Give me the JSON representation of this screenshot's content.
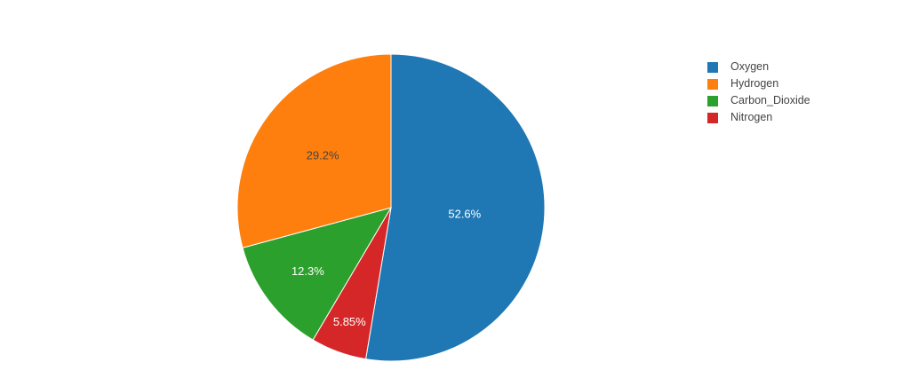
{
  "chart_data": {
    "type": "pie",
    "title": "",
    "legend_position": "right",
    "label_format": "percent_inside",
    "background_color": "#ffffff",
    "series": [
      {
        "name": "Oxygen",
        "value": 52.6,
        "display": "52.6%",
        "color": "#1f77b4",
        "text_color": "#ffffff",
        "label_radius_frac": 0.48
      },
      {
        "name": "Hydrogen",
        "value": 29.2,
        "display": "29.2%",
        "color": "#ff7f0e",
        "text_color": "#444444",
        "label_radius_frac": 0.56
      },
      {
        "name": "Carbon_Dioxide",
        "value": 12.3,
        "display": "12.3%",
        "color": "#2ca02c",
        "text_color": "#ffffff",
        "label_radius_frac": 0.68
      },
      {
        "name": "Nitrogen",
        "value": 5.85,
        "display": "5.85%",
        "color": "#d62728",
        "text_color": "#ffffff",
        "label_radius_frac": 0.79
      }
    ],
    "clockwise_order_from_top": [
      "Oxygen",
      "Nitrogen",
      "Carbon_Dioxide",
      "Hydrogen"
    ]
  },
  "legend": {
    "order": [
      "Oxygen",
      "Hydrogen",
      "Carbon_Dioxide",
      "Nitrogen"
    ]
  }
}
